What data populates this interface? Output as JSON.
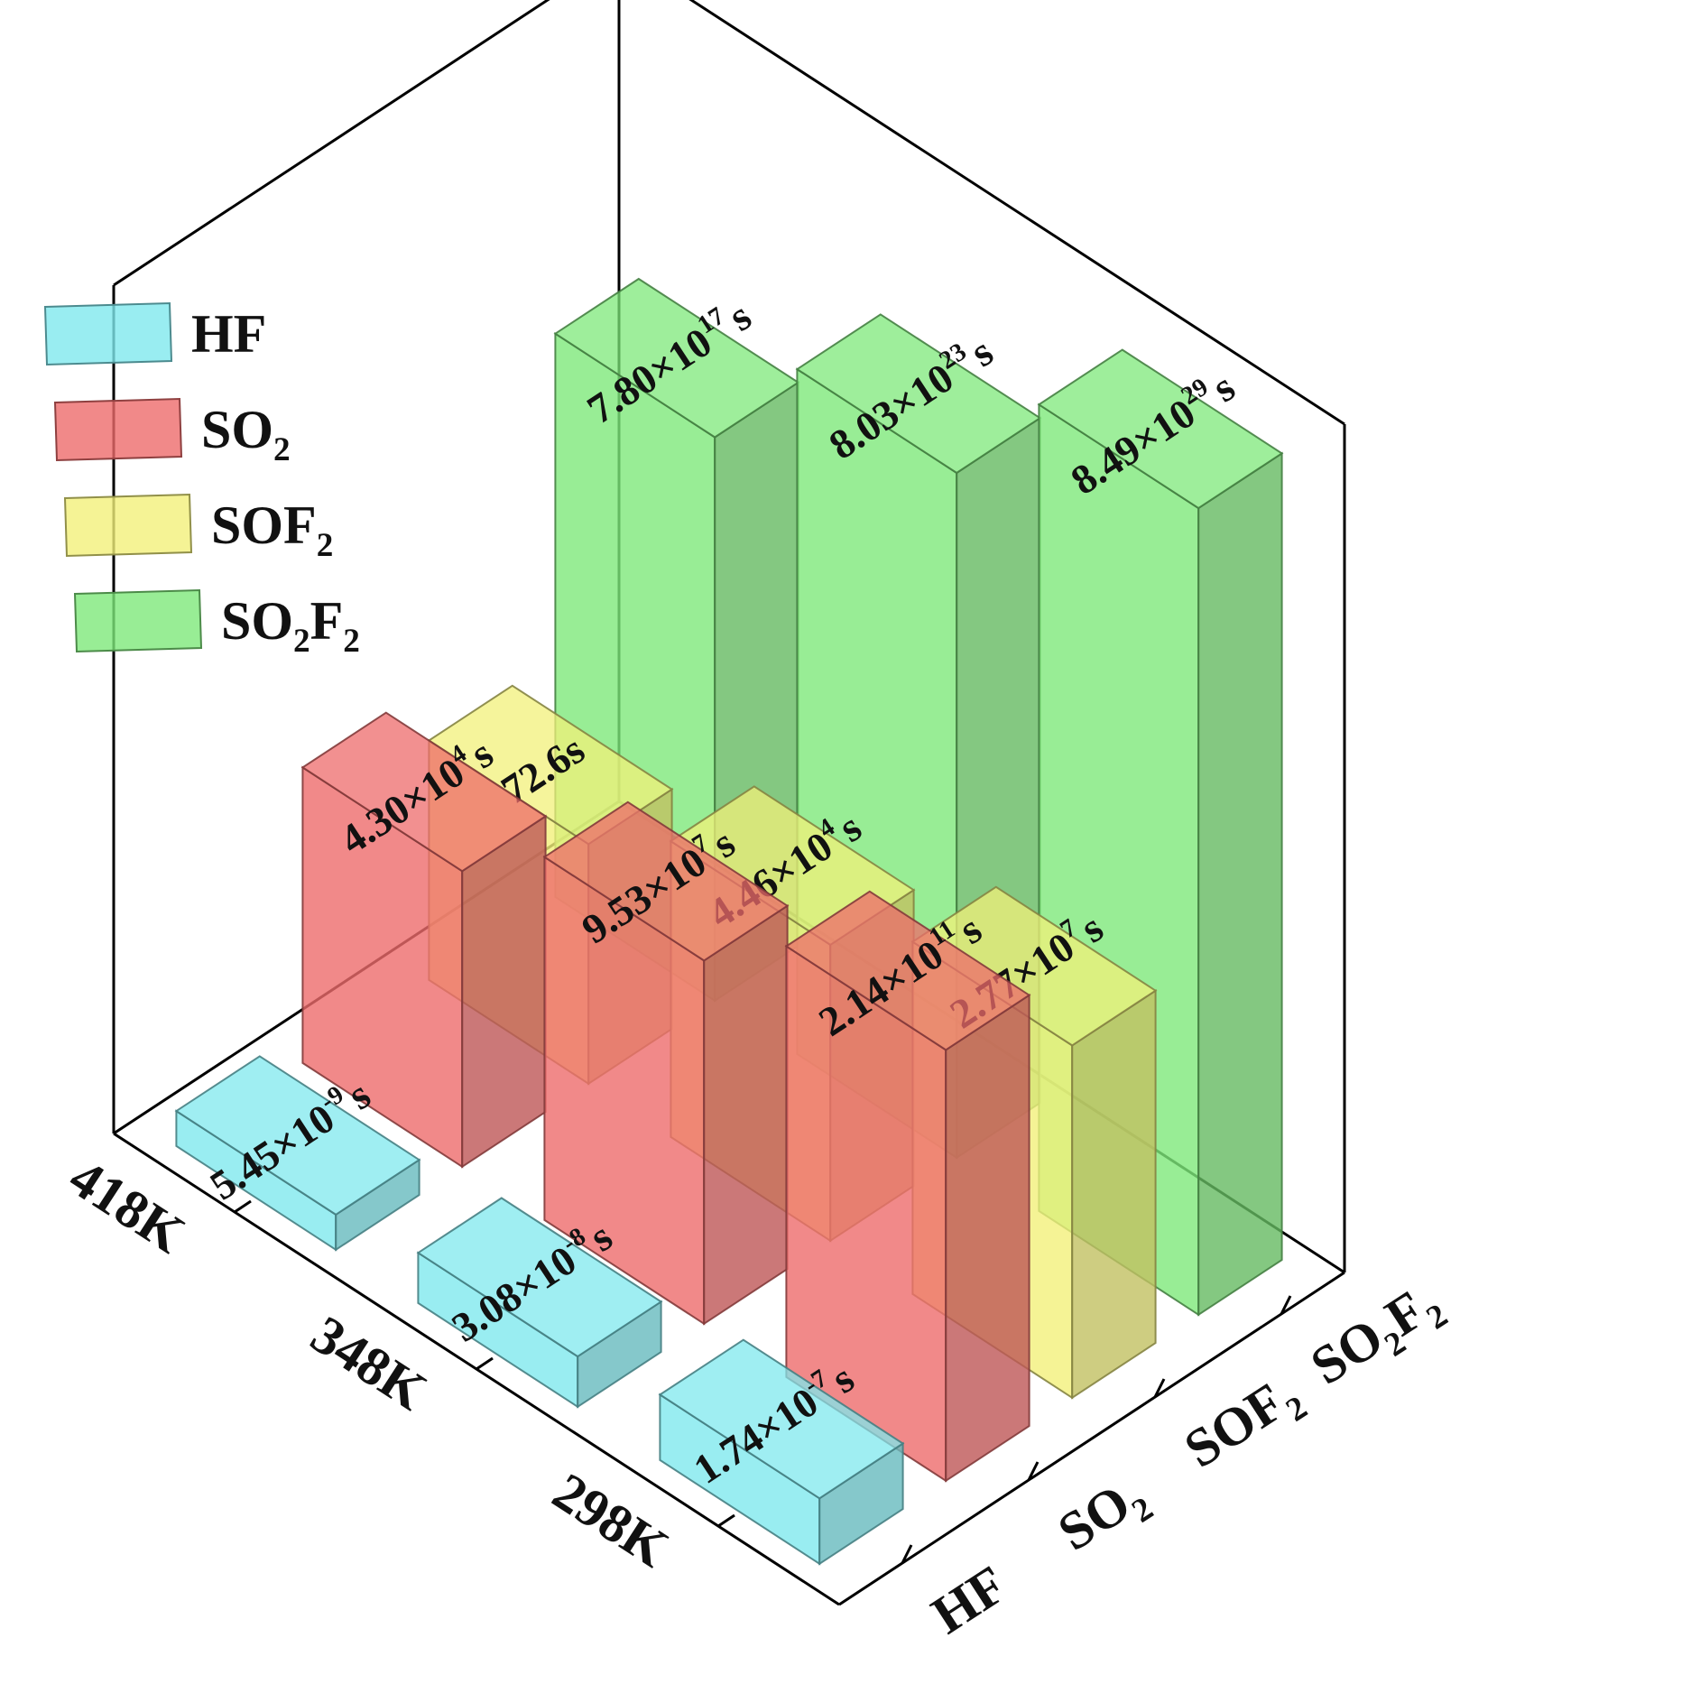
{
  "chart_data": {
    "type": "bar3d",
    "title": "",
    "temperatures": [
      "298K",
      "348K",
      "418K"
    ],
    "gases": [
      "HF",
      "SO2",
      "SOF2",
      "SO2F2"
    ],
    "gas_labels": [
      {
        "base": "HF",
        "parts": [
          [
            "HF",
            "n"
          ]
        ]
      },
      {
        "base": "SO2",
        "parts": [
          [
            "SO",
            "n"
          ],
          [
            "2",
            "sub"
          ]
        ]
      },
      {
        "base": "SOF2",
        "parts": [
          [
            "SOF",
            "n"
          ],
          [
            "2",
            "sub"
          ]
        ]
      },
      {
        "base": "SO2F2",
        "parts": [
          [
            "SO",
            "n"
          ],
          [
            "2",
            "sub"
          ],
          [
            "F",
            "n"
          ],
          [
            "2",
            "sub"
          ]
        ]
      }
    ],
    "colors": {
      "HF": "#7fe8ee",
      "SO2": "#ee6b6b",
      "SOF2": "#f2f07a",
      "SO2F2": "#7ee87a"
    },
    "unit": "s",
    "series": [
      {
        "name": "HF",
        "values": [
          {
            "temp": "298K",
            "value": 1.74e-07,
            "label": {
              "mantissa": "1.74×10",
              "exp": "-7",
              "unit": "s"
            }
          },
          {
            "temp": "348K",
            "value": 3.08e-08,
            "label": {
              "mantissa": "3.08×10",
              "exp": "-8",
              "unit": "s"
            }
          },
          {
            "temp": "418K",
            "value": 5.45e-09,
            "label": {
              "mantissa": "5.45×10",
              "exp": "-9",
              "unit": "s"
            }
          }
        ]
      },
      {
        "name": "SO2",
        "values": [
          {
            "temp": "298K",
            "value": 214000000000.0,
            "label": {
              "mantissa": "2.14×10",
              "exp": "11",
              "unit": "s"
            }
          },
          {
            "temp": "348K",
            "value": 95300000.0,
            "label": {
              "mantissa": "9.53×10",
              "exp": "7",
              "unit": "s"
            }
          },
          {
            "temp": "418K",
            "value": 43000.0,
            "label": {
              "mantissa": "4.30×10",
              "exp": "4",
              "unit": "s"
            }
          }
        ]
      },
      {
        "name": "SOF2",
        "values": [
          {
            "temp": "298K",
            "value": 27700000.0,
            "label": {
              "mantissa": "2.77×10",
              "exp": "7",
              "unit": "s"
            }
          },
          {
            "temp": "348K",
            "value": 44600.0,
            "label": {
              "mantissa": "4.46×10",
              "exp": "4",
              "unit": "s"
            }
          },
          {
            "temp": "418K",
            "value": 72.6,
            "label": {
              "mantissa": "72.6s",
              "exp": "",
              "unit": ""
            }
          }
        ]
      },
      {
        "name": "SO2F2",
        "values": [
          {
            "temp": "298K",
            "value": 8.49e+29,
            "label": {
              "mantissa": "8.49×10",
              "exp": "29",
              "unit": "s"
            }
          },
          {
            "temp": "348K",
            "value": 8.03e+23,
            "label": {
              "mantissa": "8.03×10",
              "exp": "23",
              "unit": "s"
            }
          },
          {
            "temp": "418K",
            "value": 7.8e+17,
            "label": {
              "mantissa": "7.80×10",
              "exp": "17",
              "unit": "s"
            }
          }
        ]
      }
    ],
    "legend": {
      "position": "top-left",
      "entries": [
        "HF",
        "SO2",
        "SOF2",
        "SO2F2"
      ]
    }
  }
}
